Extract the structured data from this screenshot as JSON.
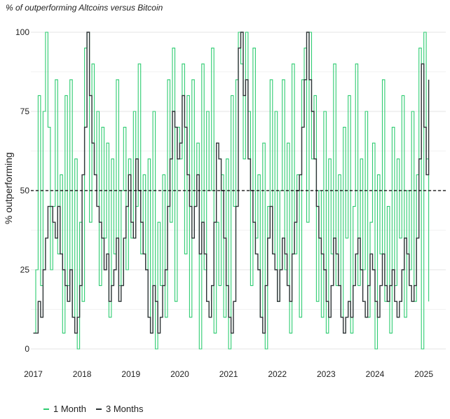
{
  "chart_data": {
    "type": "line",
    "subtitle": "% of outperforming Altcoins versus Bitcoin",
    "ylabel": "% outperforming",
    "xlabel": "",
    "ylim": [
      0,
      100
    ],
    "xlim": [
      2016.95,
      2025.45
    ],
    "y_ticks": [
      "0",
      "25",
      "50",
      "75",
      "100"
    ],
    "x_ticks": [
      "2017",
      "2018",
      "2019",
      "2020",
      "2021",
      "2022",
      "2023",
      "2024",
      "2025"
    ],
    "reference_line": {
      "y": 50,
      "style": "dashed",
      "color": "#000000"
    },
    "grid": "horizontal",
    "legend_position": "bottom-left",
    "series": [
      {
        "name": "1 Month",
        "color": "#2ecc71",
        "x": [
          2017.0,
          2017.05,
          2017.1,
          2017.15,
          2017.2,
          2017.25,
          2017.3,
          2017.35,
          2017.4,
          2017.45,
          2017.5,
          2017.55,
          2017.6,
          2017.65,
          2017.7,
          2017.75,
          2017.8,
          2017.85,
          2017.9,
          2017.95,
          2018.0,
          2018.05,
          2018.1,
          2018.15,
          2018.2,
          2018.25,
          2018.3,
          2018.35,
          2018.4,
          2018.45,
          2018.5,
          2018.55,
          2018.6,
          2018.65,
          2018.7,
          2018.75,
          2018.8,
          2018.85,
          2018.9,
          2018.95,
          2019.0,
          2019.05,
          2019.1,
          2019.15,
          2019.2,
          2019.25,
          2019.3,
          2019.35,
          2019.4,
          2019.45,
          2019.5,
          2019.55,
          2019.6,
          2019.65,
          2019.7,
          2019.75,
          2019.8,
          2019.85,
          2019.9,
          2019.95,
          2020.0,
          2020.05,
          2020.1,
          2020.15,
          2020.2,
          2020.25,
          2020.3,
          2020.35,
          2020.4,
          2020.45,
          2020.5,
          2020.55,
          2020.6,
          2020.65,
          2020.7,
          2020.75,
          2020.8,
          2020.85,
          2020.9,
          2020.95,
          2021.0,
          2021.05,
          2021.1,
          2021.15,
          2021.2,
          2021.25,
          2021.3,
          2021.35,
          2021.4,
          2021.45,
          2021.5,
          2021.55,
          2021.6,
          2021.65,
          2021.7,
          2021.75,
          2021.8,
          2021.85,
          2021.9,
          2021.95,
          2022.0,
          2022.05,
          2022.1,
          2022.15,
          2022.2,
          2022.25,
          2022.3,
          2022.35,
          2022.4,
          2022.45,
          2022.5,
          2022.55,
          2022.6,
          2022.65,
          2022.7,
          2022.75,
          2022.8,
          2022.85,
          2022.9,
          2022.95,
          2023.0,
          2023.05,
          2023.1,
          2023.15,
          2023.2,
          2023.25,
          2023.3,
          2023.35,
          2023.4,
          2023.45,
          2023.5,
          2023.55,
          2023.6,
          2023.65,
          2023.7,
          2023.75,
          2023.8,
          2023.85,
          2023.9,
          2023.95,
          2024.0,
          2024.05,
          2024.1,
          2024.15,
          2024.2,
          2024.25,
          2024.3,
          2024.35,
          2024.4,
          2024.45,
          2024.5,
          2024.55,
          2024.6,
          2024.65,
          2024.7,
          2024.75,
          2024.8,
          2024.85,
          2024.9,
          2024.95,
          2025.0,
          2025.05,
          2025.1
        ],
        "values": [
          5,
          25,
          80,
          20,
          75,
          100,
          70,
          25,
          45,
          85,
          30,
          55,
          5,
          80,
          20,
          85,
          10,
          60,
          0,
          40,
          15,
          95,
          100,
          40,
          90,
          55,
          75,
          20,
          70,
          35,
          65,
          10,
          60,
          30,
          85,
          20,
          50,
          70,
          25,
          60,
          35,
          75,
          45,
          90,
          30,
          55,
          25,
          60,
          5,
          75,
          0,
          40,
          20,
          55,
          10,
          85,
          40,
          95,
          15,
          70,
          60,
          90,
          30,
          80,
          10,
          85,
          45,
          65,
          0,
          90,
          25,
          75,
          50,
          95,
          5,
          40,
          20,
          55,
          10,
          60,
          0,
          80,
          45,
          85,
          100,
          90,
          60,
          100,
          75,
          20,
          95,
          35,
          55,
          10,
          65,
          0,
          45,
          85,
          30,
          75,
          15,
          50,
          85,
          25,
          65,
          5,
          90,
          30,
          55,
          10,
          85,
          95,
          40,
          100,
          60,
          80,
          15,
          50,
          10,
          75,
          5,
          60,
          30,
          90,
          20,
          55,
          10,
          70,
          35,
          80,
          5,
          45,
          90,
          20,
          60,
          25,
          75,
          10,
          40,
          65,
          0,
          55,
          30,
          85,
          15,
          45,
          5,
          70,
          20,
          60,
          35,
          80,
          10,
          50,
          25,
          75,
          15,
          55,
          95,
          0,
          100,
          60,
          15
        ]
      },
      {
        "name": "3 Months",
        "color": "#2d3436",
        "x": [
          2017.0,
          2017.05,
          2017.1,
          2017.15,
          2017.2,
          2017.25,
          2017.3,
          2017.35,
          2017.4,
          2017.45,
          2017.5,
          2017.55,
          2017.6,
          2017.65,
          2017.7,
          2017.75,
          2017.8,
          2017.85,
          2017.9,
          2017.95,
          2018.0,
          2018.05,
          2018.1,
          2018.15,
          2018.2,
          2018.25,
          2018.3,
          2018.35,
          2018.4,
          2018.45,
          2018.5,
          2018.55,
          2018.6,
          2018.65,
          2018.7,
          2018.75,
          2018.8,
          2018.85,
          2018.9,
          2018.95,
          2019.0,
          2019.05,
          2019.1,
          2019.15,
          2019.2,
          2019.25,
          2019.3,
          2019.35,
          2019.4,
          2019.45,
          2019.5,
          2019.55,
          2019.6,
          2019.65,
          2019.7,
          2019.75,
          2019.8,
          2019.85,
          2019.9,
          2019.95,
          2020.0,
          2020.05,
          2020.1,
          2020.15,
          2020.2,
          2020.25,
          2020.3,
          2020.35,
          2020.4,
          2020.45,
          2020.5,
          2020.55,
          2020.6,
          2020.65,
          2020.7,
          2020.75,
          2020.8,
          2020.85,
          2020.9,
          2020.95,
          2021.0,
          2021.05,
          2021.1,
          2021.15,
          2021.2,
          2021.25,
          2021.3,
          2021.35,
          2021.4,
          2021.45,
          2021.5,
          2021.55,
          2021.6,
          2021.65,
          2021.7,
          2021.75,
          2021.8,
          2021.85,
          2021.9,
          2021.95,
          2022.0,
          2022.05,
          2022.1,
          2022.15,
          2022.2,
          2022.25,
          2022.3,
          2022.35,
          2022.4,
          2022.45,
          2022.5,
          2022.55,
          2022.6,
          2022.65,
          2022.7,
          2022.75,
          2022.8,
          2022.85,
          2022.9,
          2022.95,
          2023.0,
          2023.05,
          2023.1,
          2023.15,
          2023.2,
          2023.25,
          2023.3,
          2023.35,
          2023.4,
          2023.45,
          2023.5,
          2023.55,
          2023.6,
          2023.65,
          2023.7,
          2023.75,
          2023.8,
          2023.85,
          2023.9,
          2023.95,
          2024.0,
          2024.05,
          2024.1,
          2024.15,
          2024.2,
          2024.25,
          2024.3,
          2024.35,
          2024.4,
          2024.45,
          2024.5,
          2024.55,
          2024.6,
          2024.65,
          2024.7,
          2024.75,
          2024.8,
          2024.85,
          2024.9,
          2024.95,
          2025.0,
          2025.05,
          2025.1
        ],
        "values": [
          5,
          5,
          15,
          10,
          25,
          35,
          45,
          45,
          40,
          35,
          45,
          30,
          25,
          20,
          15,
          25,
          10,
          5,
          10,
          20,
          55,
          70,
          100,
          80,
          65,
          55,
          45,
          40,
          35,
          25,
          30,
          15,
          20,
          25,
          35,
          15,
          20,
          35,
          45,
          55,
          40,
          35,
          60,
          50,
          40,
          30,
          25,
          10,
          5,
          20,
          15,
          5,
          10,
          20,
          25,
          45,
          60,
          75,
          70,
          60,
          65,
          80,
          70,
          55,
          45,
          35,
          45,
          55,
          30,
          40,
          30,
          15,
          10,
          20,
          40,
          65,
          60,
          50,
          35,
          20,
          10,
          5,
          15,
          45,
          95,
          100,
          80,
          85,
          60,
          50,
          40,
          30,
          25,
          10,
          5,
          20,
          35,
          45,
          30,
          25,
          15,
          25,
          35,
          30,
          20,
          15,
          30,
          40,
          50,
          55,
          70,
          85,
          100,
          85,
          75,
          60,
          45,
          35,
          30,
          25,
          15,
          10,
          20,
          35,
          30,
          20,
          10,
          5,
          10,
          15,
          10,
          20,
          30,
          35,
          25,
          15,
          10,
          20,
          30,
          25,
          15,
          10,
          20,
          30,
          20,
          15,
          20,
          25,
          15,
          10,
          15,
          25,
          35,
          30,
          20,
          15,
          20,
          35,
          60,
          90,
          70,
          55,
          85
        ]
      }
    ]
  }
}
